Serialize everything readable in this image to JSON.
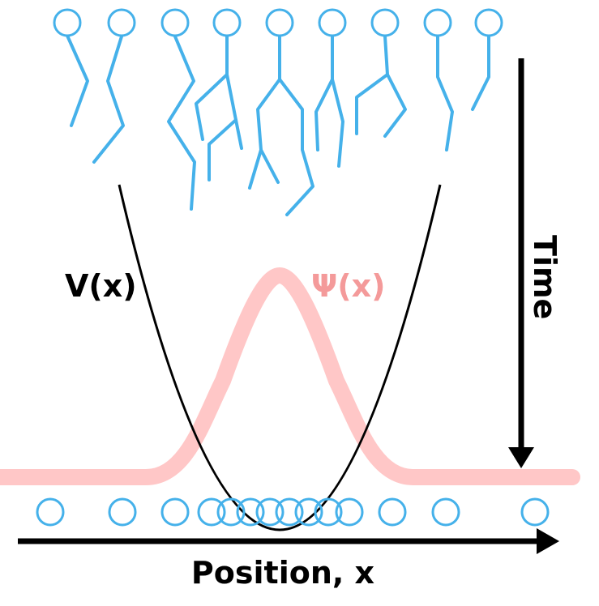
{
  "labels": {
    "potential": "V(x)",
    "wavefunction": "Ψ(x)",
    "time_axis": "Time",
    "position_axis": "Position, x"
  },
  "colors": {
    "background": "#ffffff",
    "walker": "#45b1ea",
    "wavefunction": "#ffc7c7",
    "wavefunction_label": "#f49a9a",
    "potential": "#000000",
    "axes": "#000000"
  },
  "icons": {
    "walker": "hollow-circle",
    "path_lines": "polyline-trajectories",
    "arrow": "triangle-arrowhead"
  }
}
